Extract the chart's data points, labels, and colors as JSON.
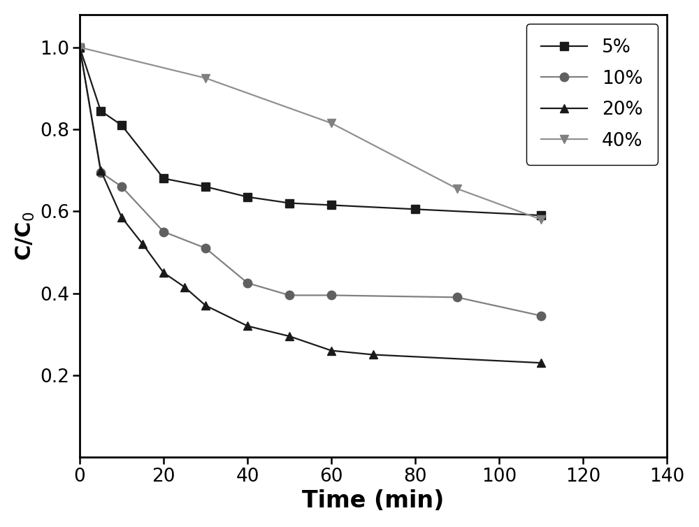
{
  "series": [
    {
      "label": "5%",
      "x": [
        0,
        5,
        10,
        20,
        30,
        40,
        50,
        60,
        80,
        110
      ],
      "y": [
        1.0,
        0.845,
        0.81,
        0.68,
        0.66,
        0.635,
        0.62,
        0.615,
        0.605,
        0.59
      ],
      "color": "#1a1a1a",
      "marker": "s",
      "markercolor": "#1a1a1a",
      "linestyle": "-"
    },
    {
      "label": "10%",
      "x": [
        0,
        5,
        10,
        20,
        30,
        40,
        50,
        60,
        90,
        110
      ],
      "y": [
        1.0,
        0.695,
        0.66,
        0.55,
        0.51,
        0.425,
        0.395,
        0.395,
        0.39,
        0.345
      ],
      "color": "#808080",
      "marker": "o",
      "markercolor": "#606060",
      "linestyle": "-"
    },
    {
      "label": "20%",
      "x": [
        0,
        5,
        10,
        15,
        20,
        25,
        30,
        40,
        50,
        60,
        70,
        110
      ],
      "y": [
        1.0,
        0.7,
        0.585,
        0.52,
        0.45,
        0.415,
        0.37,
        0.32,
        0.295,
        0.26,
        0.25,
        0.23
      ],
      "color": "#1a1a1a",
      "marker": "^",
      "markercolor": "#1a1a1a",
      "linestyle": "-"
    },
    {
      "label": "40%",
      "x": [
        0,
        30,
        60,
        90,
        110
      ],
      "y": [
        1.0,
        0.925,
        0.815,
        0.655,
        0.58
      ],
      "color": "#909090",
      "marker": "v",
      "markercolor": "#808080",
      "linestyle": "-"
    }
  ],
  "xlabel": "Time (min)",
  "ylabel": "C/C$_0$",
  "xlim": [
    0,
    140
  ],
  "ylim": [
    0.0,
    1.08
  ],
  "xticks": [
    0,
    20,
    40,
    60,
    80,
    100,
    120,
    140
  ],
  "yticks": [
    0.2,
    0.4,
    0.6,
    0.8,
    1.0
  ],
  "legend_loc": "upper right",
  "marker_size": 9,
  "linewidth": 1.6,
  "background_color": "#ffffff",
  "xlabel_fontsize": 24,
  "ylabel_fontsize": 22,
  "tick_fontsize": 19,
  "legend_fontsize": 19
}
